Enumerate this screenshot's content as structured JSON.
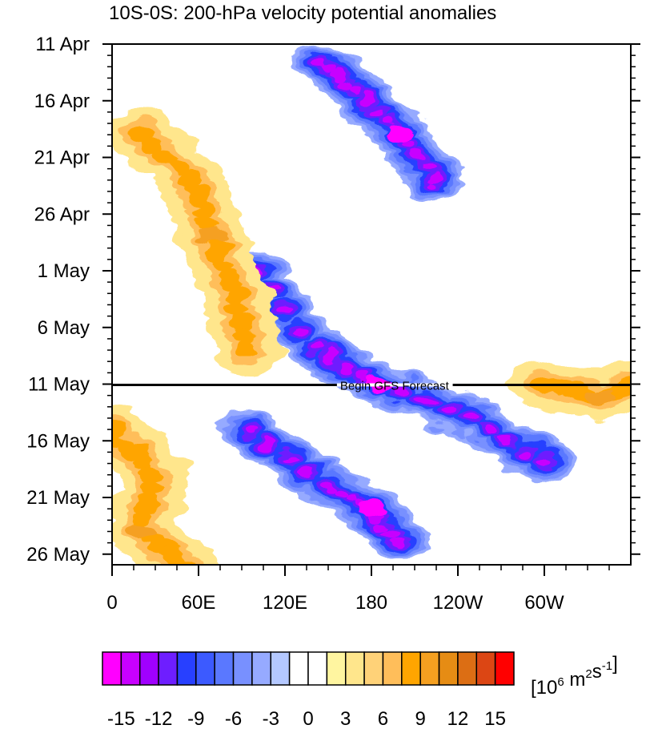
{
  "chart_data": {
    "type": "heatmap",
    "title": "10S-0S: 200-hPa velocity potential anomalies",
    "xlabel": "",
    "ylabel": "",
    "x_ticks": [
      {
        "lon": 0,
        "label": "0"
      },
      {
        "lon": 60,
        "label": "60E"
      },
      {
        "lon": 120,
        "label": "120E"
      },
      {
        "lon": 180,
        "label": "180"
      },
      {
        "lon": 240,
        "label": "120W"
      },
      {
        "lon": 300,
        "label": "60W"
      }
    ],
    "x_range": [
      0,
      360
    ],
    "y_ticks": [
      {
        "day": 0,
        "label": "11 Apr"
      },
      {
        "day": 5,
        "label": "16 Apr"
      },
      {
        "day": 10,
        "label": "21 Apr"
      },
      {
        "day": 15,
        "label": "26 Apr"
      },
      {
        "day": 20,
        "label": "1 May"
      },
      {
        "day": 25,
        "label": "6 May"
      },
      {
        "day": 30,
        "label": "11 May"
      },
      {
        "day": 35,
        "label": "16 May"
      },
      {
        "day": 40,
        "label": "21 May"
      },
      {
        "day": 45,
        "label": "26 May"
      }
    ],
    "y_range": [
      "11 Apr",
      "27 May"
    ],
    "annotation": {
      "text": "Begin GFS Forecast",
      "date": "11 May"
    },
    "colorbar": {
      "levels": [
        -15,
        -12,
        -9,
        -6,
        -3,
        0,
        3,
        6,
        9,
        12,
        15
      ],
      "tick_labels": [
        "-15",
        "-12",
        "-9",
        "-6",
        "-3",
        "0",
        "3",
        "6",
        "9",
        "12",
        "15"
      ],
      "colors": [
        "#ff00ff",
        "#c800ff",
        "#a000ff",
        "#6e1eff",
        "#2840ff",
        "#3c5aff",
        "#5a78ff",
        "#7890ff",
        "#96aaff",
        "#b4c8ff",
        "#ffffff",
        "#ffffff",
        "#fff5a0",
        "#ffe68c",
        "#ffd278",
        "#ffbe5a",
        "#ffa500",
        "#f5a020",
        "#e68c14",
        "#dc6e14",
        "#dc4614",
        "#ff0000"
      ],
      "units_base": "[10",
      "units_exp1": "6",
      "units_mid": " m",
      "units_exp2": "2",
      "units_mid2": "s",
      "units_exp3": "-1",
      "units_end": "]"
    },
    "features": [
      {
        "name": "negative anomaly band 1",
        "sign": "negative",
        "peak": -15,
        "path": [
          [
            145,
            1.5
          ],
          [
            168,
            4
          ],
          [
            200,
            8
          ],
          [
            225,
            12
          ]
        ]
      },
      {
        "name": "negative anomaly band 2",
        "sign": "negative",
        "peak": -15,
        "path": [
          [
            100,
            20
          ],
          [
            140,
            27
          ],
          [
            185,
            30
          ],
          [
            250,
            33
          ],
          [
            300,
            37
          ]
        ]
      },
      {
        "name": "negative anomaly band 3",
        "sign": "negative",
        "peak": -15,
        "path": [
          [
            95,
            34
          ],
          [
            150,
            39
          ],
          [
            180,
            41
          ],
          [
            200,
            44
          ]
        ]
      },
      {
        "name": "positive anomaly band 1",
        "sign": "positive",
        "peak": 9,
        "path": [
          [
            20,
            8
          ],
          [
            55,
            12
          ],
          [
            70,
            17
          ],
          [
            85,
            22
          ],
          [
            95,
            27
          ]
        ]
      },
      {
        "name": "positive anomaly band 2",
        "sign": "positive",
        "peak": 9,
        "path": [
          [
            0,
            34
          ],
          [
            30,
            38
          ],
          [
            20,
            43
          ],
          [
            50,
            46
          ]
        ]
      },
      {
        "name": "positive anomaly band 3",
        "sign": "positive",
        "peak": 9,
        "path": [
          [
            300,
            30
          ],
          [
            340,
            31
          ],
          [
            360,
            30
          ]
        ]
      }
    ]
  }
}
